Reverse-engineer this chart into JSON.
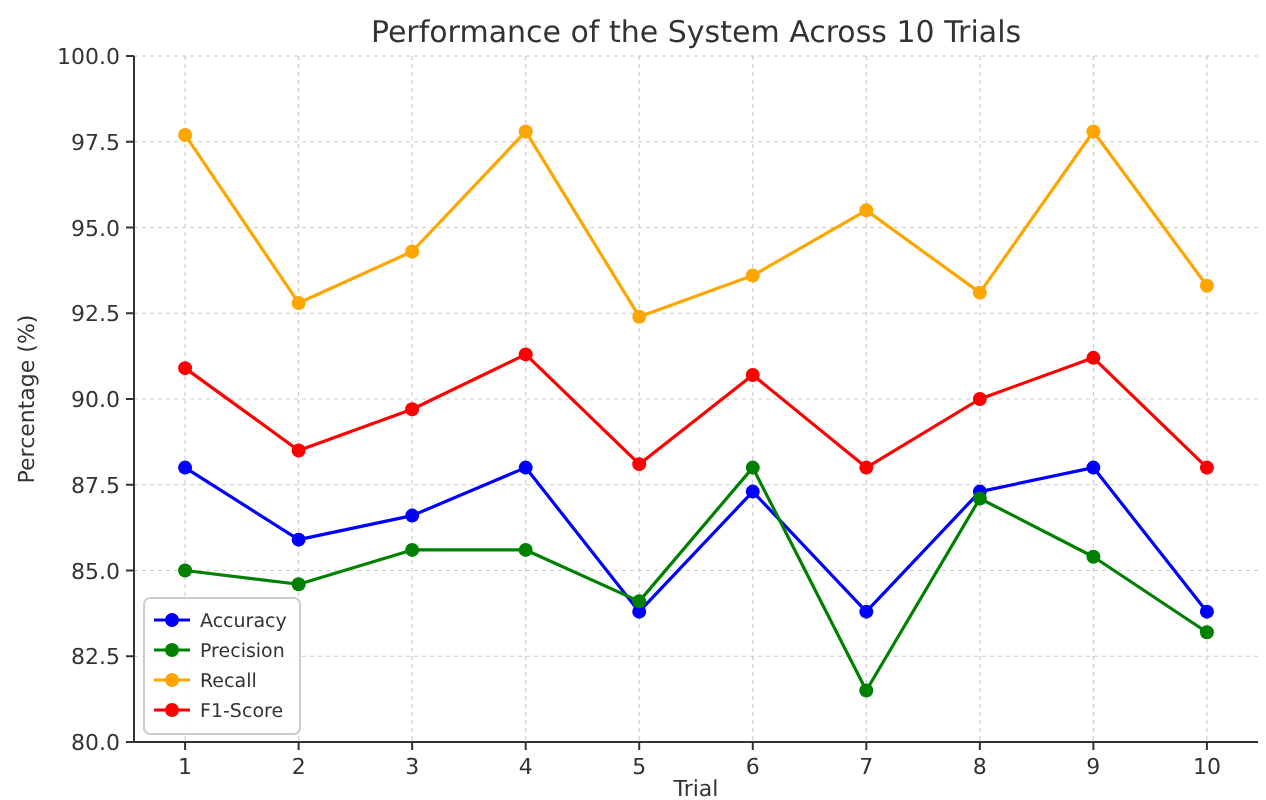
{
  "chart_data": {
    "type": "line",
    "title": "Performance of the System Across 10 Trials",
    "xlabel": "Trial",
    "ylabel": "Percentage (%)",
    "x": [
      1,
      2,
      3,
      4,
      5,
      6,
      7,
      8,
      9,
      10
    ],
    "xlim": [
      0.55,
      10.45
    ],
    "xticks": [
      1,
      2,
      3,
      4,
      5,
      6,
      7,
      8,
      9,
      10
    ],
    "ylim": [
      80,
      100
    ],
    "yticks": [
      {
        "value": 80,
        "label": "80.0"
      },
      {
        "value": 82.5,
        "label": "82.5"
      },
      {
        "value": 85,
        "label": "85.0"
      },
      {
        "value": 87.5,
        "label": "87.5"
      },
      {
        "value": 90,
        "label": "90.0"
      },
      {
        "value": 92.5,
        "label": "92.5"
      },
      {
        "value": 95,
        "label": "95.0"
      },
      {
        "value": 97.5,
        "label": "97.5"
      },
      {
        "value": 100,
        "label": "100.0"
      }
    ],
    "grid": true,
    "legend": "bottom left",
    "marker": "circle",
    "line_style": "solid",
    "series": [
      {
        "name": "Accuracy",
        "color": "#0000ff",
        "values": [
          88.0,
          85.9,
          86.6,
          88.0,
          83.8,
          87.3,
          83.8,
          87.3,
          88.0,
          83.8
        ]
      },
      {
        "name": "Precision",
        "color": "#008000",
        "values": [
          85.0,
          84.6,
          85.6,
          85.6,
          84.1,
          88.0,
          81.5,
          87.1,
          85.4,
          83.2
        ]
      },
      {
        "name": "Recall",
        "color": "#ffa500",
        "values": [
          97.7,
          92.8,
          94.3,
          97.8,
          92.4,
          93.6,
          95.5,
          93.1,
          97.8,
          93.3
        ]
      },
      {
        "name": "F1-Score",
        "color": "#ff0000",
        "values": [
          90.9,
          88.5,
          89.7,
          91.3,
          88.1,
          90.7,
          88.0,
          90.0,
          91.2,
          88.0
        ]
      }
    ]
  }
}
